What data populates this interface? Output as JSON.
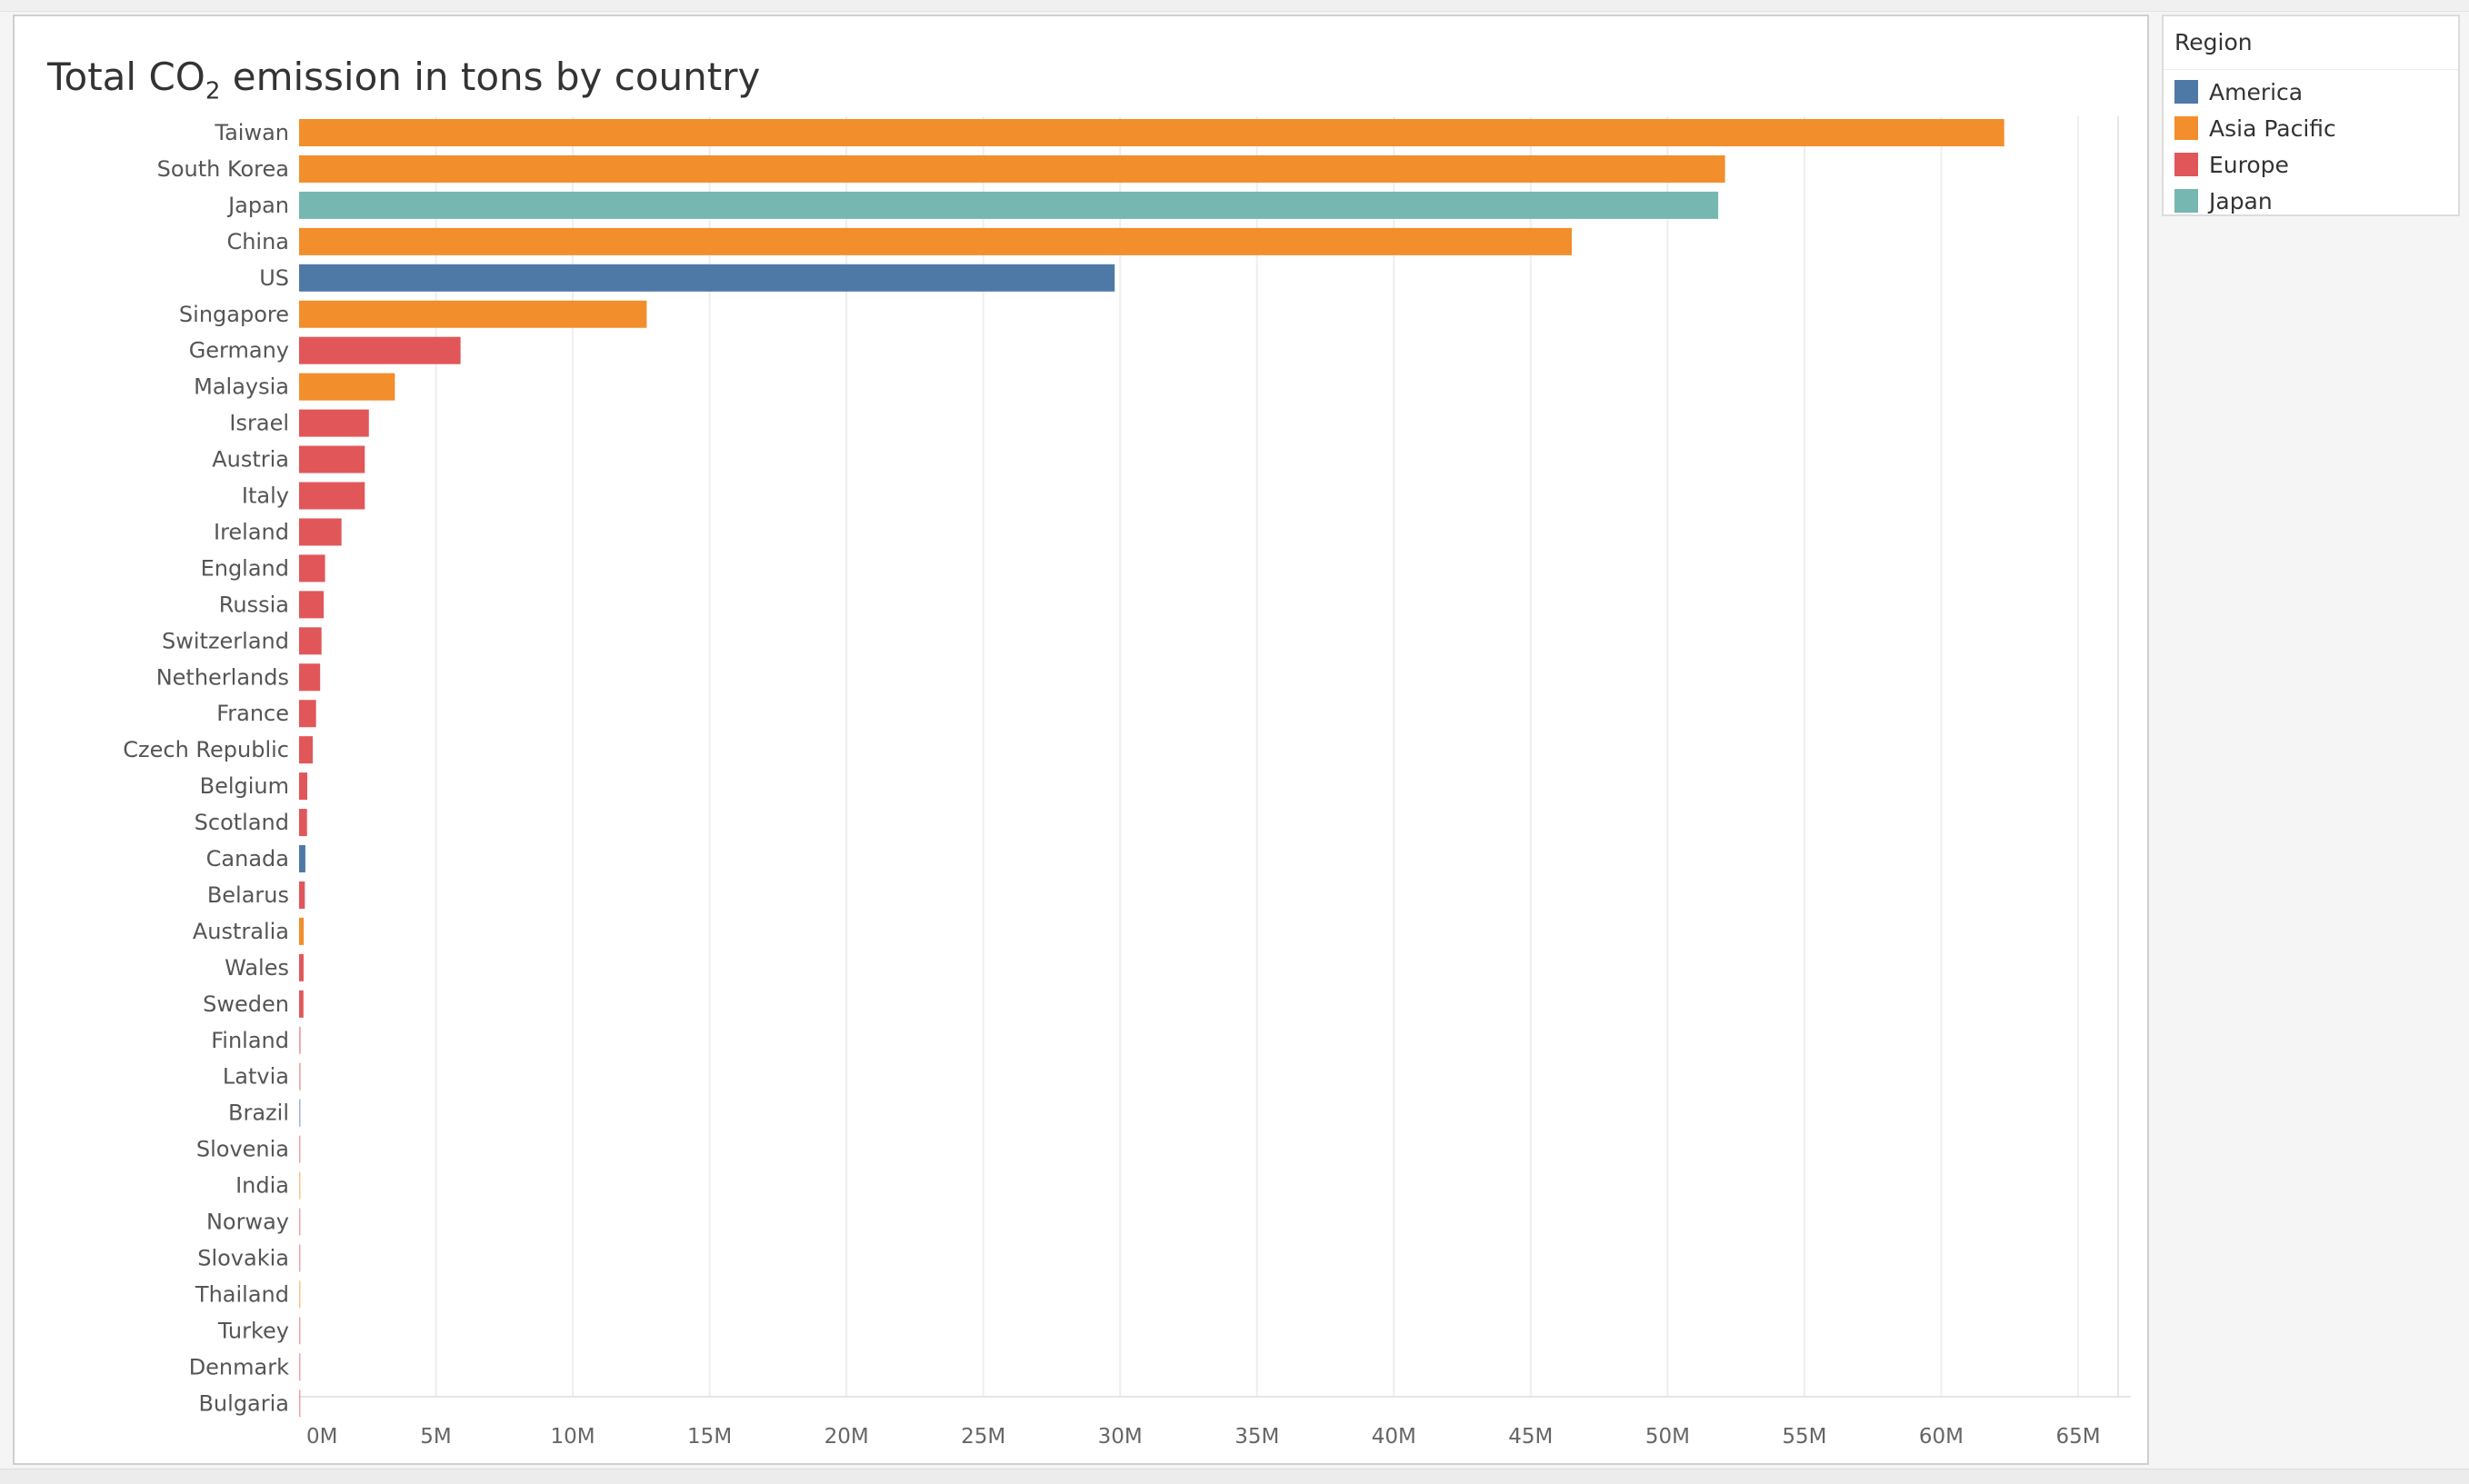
{
  "chart_data": {
    "type": "bar",
    "orientation": "horizontal",
    "title_main": "Total CO",
    "title_sub": "2",
    "title_rest": " emission in tons by country",
    "legend_title": "Region",
    "xlim": [
      0,
      65000000
    ],
    "x_ticks": [
      0,
      5000000,
      10000000,
      15000000,
      20000000,
      25000000,
      30000000,
      35000000,
      40000000,
      45000000,
      50000000,
      55000000,
      60000000,
      65000000
    ],
    "x_tick_labels": [
      "0M",
      "5M",
      "10M",
      "15M",
      "20M",
      "25M",
      "30M",
      "35M",
      "40M",
      "45M",
      "50M",
      "55M",
      "60M",
      "65M"
    ],
    "grid": "vertical",
    "legend_position": "right",
    "regions": [
      {
        "name": "America",
        "color": "#4e79a7"
      },
      {
        "name": "Asia Pacific",
        "color": "#f28e2b"
      },
      {
        "name": "Europe",
        "color": "#e15759"
      },
      {
        "name": "Japan",
        "color": "#76b7b2"
      }
    ],
    "bars": [
      {
        "country": "Taiwan",
        "value": 62300000,
        "region": "Asia Pacific"
      },
      {
        "country": "South Korea",
        "value": 52100000,
        "region": "Asia Pacific"
      },
      {
        "country": "Japan",
        "value": 51850000,
        "region": "Japan"
      },
      {
        "country": "China",
        "value": 46500000,
        "region": "Asia Pacific"
      },
      {
        "country": "US",
        "value": 29800000,
        "region": "America"
      },
      {
        "country": "Singapore",
        "value": 12700000,
        "region": "Asia Pacific"
      },
      {
        "country": "Germany",
        "value": 5900000,
        "region": "Europe"
      },
      {
        "country": "Malaysia",
        "value": 3500000,
        "region": "Asia Pacific"
      },
      {
        "country": "Israel",
        "value": 2550000,
        "region": "Europe"
      },
      {
        "country": "Austria",
        "value": 2400000,
        "region": "Europe"
      },
      {
        "country": "Italy",
        "value": 2400000,
        "region": "Europe"
      },
      {
        "country": "Ireland",
        "value": 1550000,
        "region": "Europe"
      },
      {
        "country": "England",
        "value": 950000,
        "region": "Europe"
      },
      {
        "country": "Russia",
        "value": 900000,
        "region": "Europe"
      },
      {
        "country": "Switzerland",
        "value": 820000,
        "region": "Europe"
      },
      {
        "country": "Netherlands",
        "value": 770000,
        "region": "Europe"
      },
      {
        "country": "France",
        "value": 620000,
        "region": "Europe"
      },
      {
        "country": "Czech Republic",
        "value": 500000,
        "region": "Europe"
      },
      {
        "country": "Belgium",
        "value": 300000,
        "region": "Europe"
      },
      {
        "country": "Scotland",
        "value": 290000,
        "region": "Europe"
      },
      {
        "country": "Canada",
        "value": 230000,
        "region": "America"
      },
      {
        "country": "Belarus",
        "value": 210000,
        "region": "Europe"
      },
      {
        "country": "Australia",
        "value": 170000,
        "region": "Asia Pacific"
      },
      {
        "country": "Wales",
        "value": 165000,
        "region": "Europe"
      },
      {
        "country": "Sweden",
        "value": 160000,
        "region": "Europe"
      },
      {
        "country": "Finland",
        "value": 60000,
        "region": "Europe"
      },
      {
        "country": "Latvia",
        "value": 55000,
        "region": "Europe"
      },
      {
        "country": "Brazil",
        "value": 50000,
        "region": "America"
      },
      {
        "country": "Slovenia",
        "value": 45000,
        "region": "Europe"
      },
      {
        "country": "India",
        "value": 40000,
        "region": "Asia Pacific"
      },
      {
        "country": "Norway",
        "value": 35000,
        "region": "Europe"
      },
      {
        "country": "Slovakia",
        "value": 30000,
        "region": "Europe"
      },
      {
        "country": "Thailand",
        "value": 30000,
        "region": "Asia Pacific"
      },
      {
        "country": "Turkey",
        "value": 28000,
        "region": "Europe"
      },
      {
        "country": "Denmark",
        "value": 25000,
        "region": "Europe"
      },
      {
        "country": "Bulgaria",
        "value": 22000,
        "region": "Europe"
      }
    ]
  }
}
